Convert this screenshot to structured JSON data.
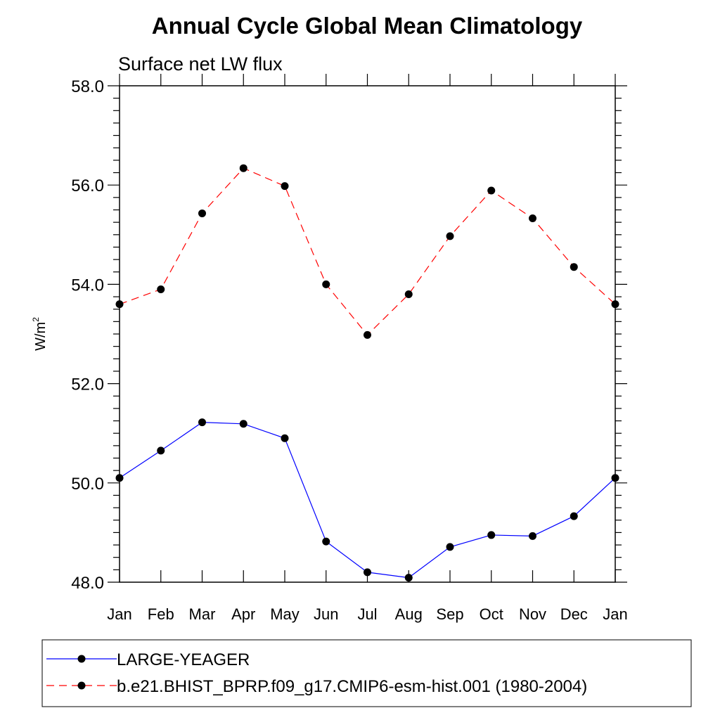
{
  "chart_data": {
    "type": "line",
    "title": "Annual Cycle Global Mean Climatology",
    "subtitle": "Surface net LW flux",
    "ylabel": "W/m",
    "ylabel_superscript": "2",
    "ylim": [
      48.0,
      58.0
    ],
    "yticks": [
      "48.0",
      "50.0",
      "52.0",
      "54.0",
      "56.0",
      "58.0"
    ],
    "ytick_values": [
      48,
      50,
      52,
      54,
      56,
      58
    ],
    "categories": [
      "Jan",
      "Feb",
      "Mar",
      "Apr",
      "May",
      "Jun",
      "Jul",
      "Aug",
      "Sep",
      "Oct",
      "Nov",
      "Dec",
      "Jan"
    ],
    "grid": false,
    "legend_placement": "bottom",
    "series": [
      {
        "name": "LARGE-YEAGER",
        "color": "#0000ff",
        "dash": "solid",
        "marker": "filled-circle",
        "values": [
          50.1,
          50.65,
          51.22,
          51.19,
          50.9,
          48.82,
          48.2,
          48.09,
          48.71,
          48.95,
          48.93,
          49.33,
          50.1
        ]
      },
      {
        "name": "b.e21.BHIST_BPRP.f09_g17.CMIP6-esm-hist.001 (1980-2004)",
        "color": "#ff0000",
        "dash": "dashed",
        "marker": "filled-circle",
        "values": [
          53.6,
          53.9,
          55.43,
          56.34,
          55.98,
          54.0,
          52.98,
          53.8,
          54.97,
          55.89,
          55.33,
          54.35,
          53.6
        ]
      }
    ]
  }
}
